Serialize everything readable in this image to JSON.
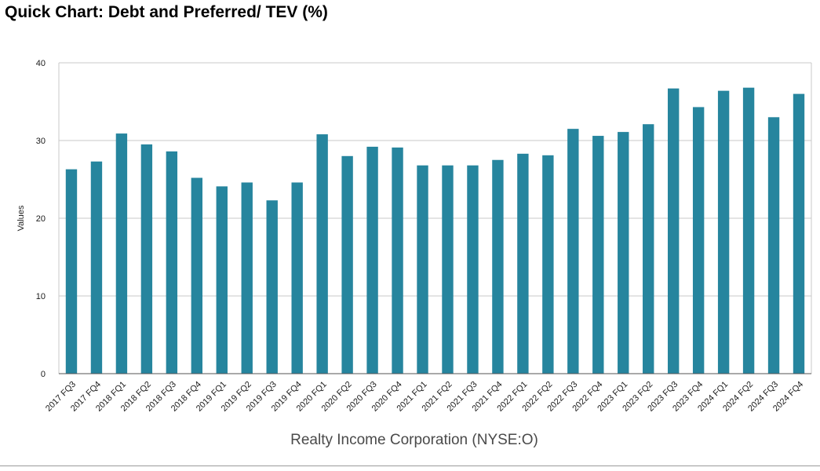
{
  "title": "Quick Chart: Debt and Preferred/ TEV (%)",
  "colors": {
    "bar": "#26859e",
    "grid": "#c8c8c8",
    "axis": "#555555"
  },
  "chart_data": {
    "type": "bar",
    "title": "Quick Chart: Debt and Preferred/ TEV (%)",
    "xlabel": "Realty Income Corporation (NYSE:O)",
    "ylabel": "Values",
    "ylim": [
      0,
      40
    ],
    "yticks": [
      0,
      10,
      20,
      30,
      40
    ],
    "grid": true,
    "categories": [
      "2017 FQ3",
      "2017 FQ4",
      "2018 FQ1",
      "2018 FQ2",
      "2018 FQ3",
      "2018 FQ4",
      "2019 FQ1",
      "2019 FQ2",
      "2019 FQ3",
      "2019 FQ4",
      "2020 FQ1",
      "2020 FQ2",
      "2020 FQ3",
      "2020 FQ4",
      "2021 FQ1",
      "2021 FQ2",
      "2021 FQ3",
      "2021 FQ4",
      "2022 FQ1",
      "2022 FQ2",
      "2022 FQ3",
      "2022 FQ4",
      "2023 FQ1",
      "2023 FQ2",
      "2023 FQ3",
      "2023 FQ4",
      "2024 FQ1",
      "2024 FQ2",
      "2024 FQ3",
      "2024 FQ4"
    ],
    "values": [
      26.3,
      27.3,
      30.9,
      29.5,
      28.6,
      25.2,
      24.1,
      24.6,
      22.3,
      24.6,
      30.8,
      28.0,
      29.2,
      29.1,
      26.8,
      26.8,
      26.8,
      27.5,
      28.3,
      28.1,
      31.5,
      30.6,
      31.1,
      32.1,
      36.7,
      34.3,
      36.4,
      36.8,
      33.0,
      36.0
    ]
  }
}
